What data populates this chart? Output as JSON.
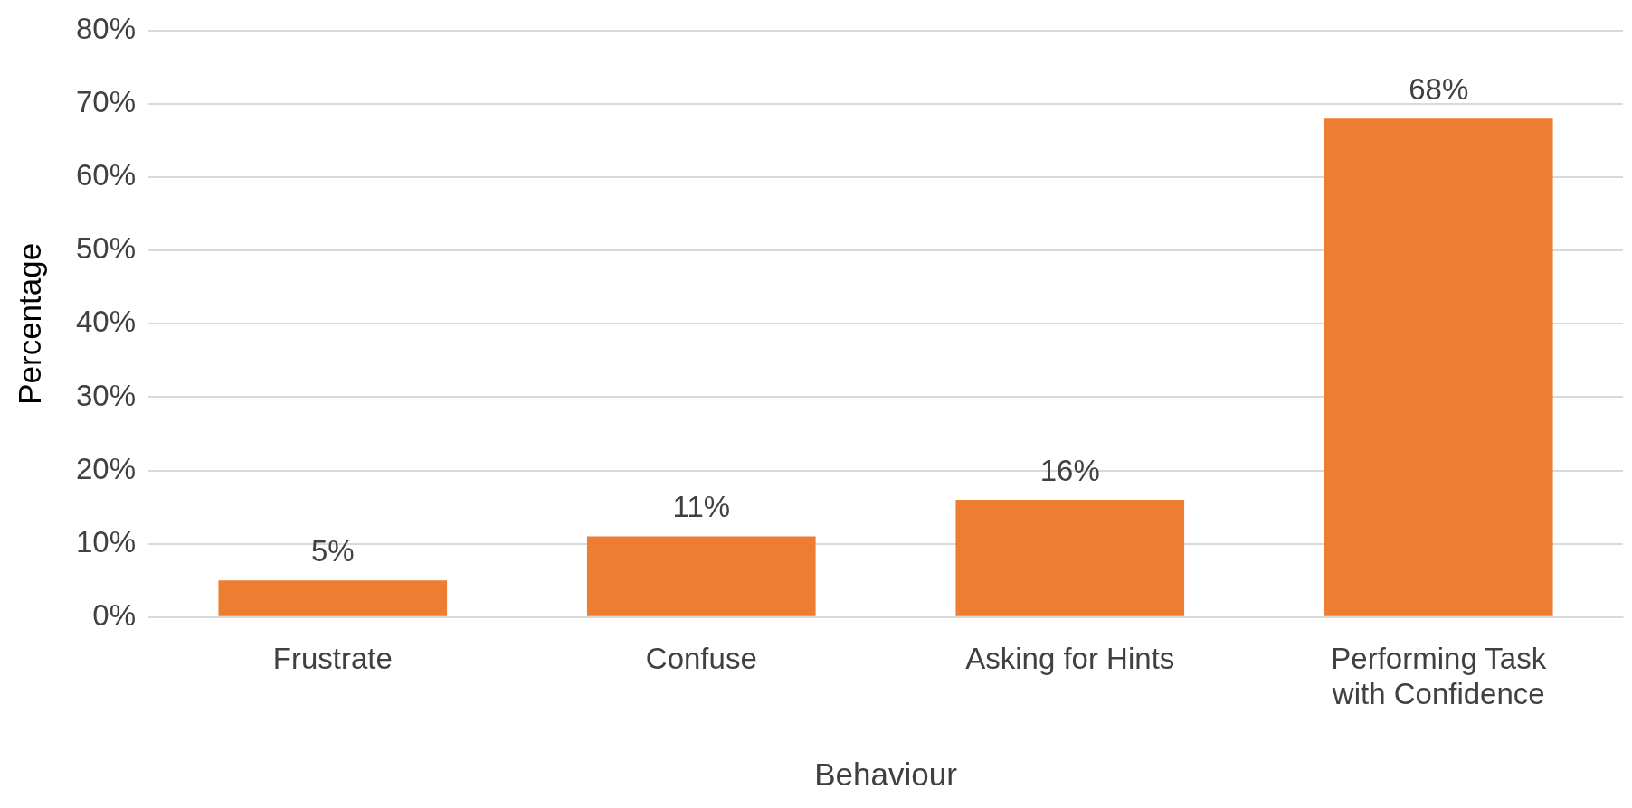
{
  "chart_data": {
    "type": "bar",
    "xlabel": "Behaviour",
    "ylabel": "Percentage",
    "categories": [
      "Frustrate",
      "Confuse",
      "Asking for Hints",
      "Performing Task with Confidence"
    ],
    "values": [
      5,
      11,
      16,
      68
    ],
    "color": "#ed7d31",
    "value_labels": [
      "5%",
      "11%",
      "16%",
      "68%"
    ],
    "ylim": [
      0,
      80
    ],
    "yticks": [
      {
        "value": 0,
        "label": "0%"
      },
      {
        "value": 10,
        "label": "10%"
      },
      {
        "value": 20,
        "label": "20%"
      },
      {
        "value": 30,
        "label": "30%"
      },
      {
        "value": 40,
        "label": "40%"
      },
      {
        "value": 50,
        "label": "50%"
      },
      {
        "value": 60,
        "label": "60%"
      },
      {
        "value": 70,
        "label": "70%"
      },
      {
        "value": 80,
        "label": "80%"
      }
    ],
    "grid": "y",
    "legend": false
  }
}
